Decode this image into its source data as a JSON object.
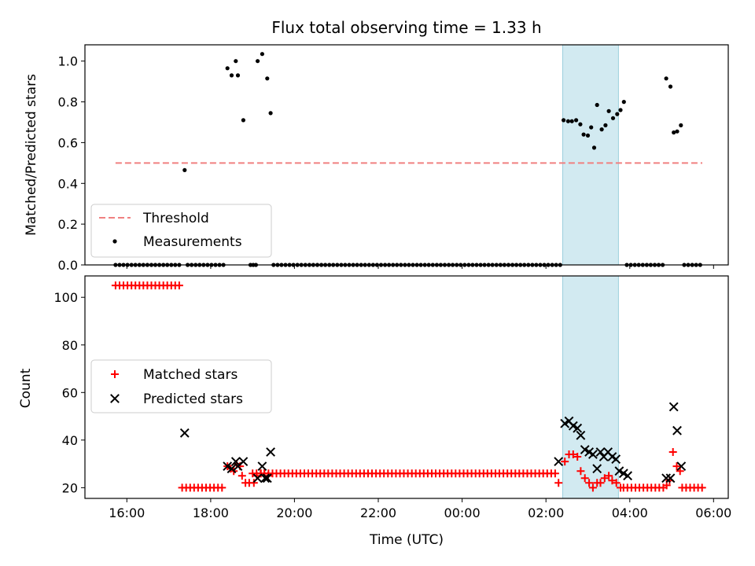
{
  "chart_data": [
    {
      "type": "scatter",
      "title": "Flux total observing time = 1.33 h",
      "ylabel": "Matched/Predicted stars",
      "xlabel": "",
      "x_unit": "hours since 00:00 UTC (negative = previous day)",
      "xlim": [
        -9.0,
        6.35
      ],
      "ylim": [
        0,
        1.08
      ],
      "yticks": [
        0.0,
        0.2,
        0.4,
        0.6,
        0.8,
        1.0
      ],
      "ytick_labels": [
        "0.0",
        "0.2",
        "0.4",
        "0.6",
        "0.8",
        "1.0"
      ],
      "highlight_span": [
        2.4,
        3.73
      ],
      "highlight_color": "#add8e6",
      "threshold": {
        "name": "Threshold",
        "value": 0.5,
        "x_range": [
          -8.27,
          5.73
        ],
        "color": "#f08080"
      },
      "legend": {
        "placement": "lower-left",
        "entries": [
          "Threshold",
          "Measurements"
        ]
      },
      "series": [
        {
          "name": "Measurements",
          "color": "#000000",
          "marker": "dot",
          "points": [
            [
              -6.62,
              0.465
            ],
            [
              -5.6,
              0.965
            ],
            [
              -5.5,
              0.93
            ],
            [
              -5.4,
              1.0
            ],
            [
              -5.35,
              0.93
            ],
            [
              -5.22,
              0.71
            ],
            [
              -4.88,
              1.0
            ],
            [
              -4.77,
              1.035
            ],
            [
              -4.65,
              0.915
            ],
            [
              -4.57,
              0.745
            ],
            [
              2.42,
              0.71
            ],
            [
              2.53,
              0.705
            ],
            [
              2.62,
              0.705
            ],
            [
              2.72,
              0.71
            ],
            [
              2.82,
              0.69
            ],
            [
              2.9,
              0.64
            ],
            [
              3.0,
              0.635
            ],
            [
              3.08,
              0.675
            ],
            [
              3.15,
              0.575
            ],
            [
              3.22,
              0.785
            ],
            [
              3.33,
              0.665
            ],
            [
              3.42,
              0.685
            ],
            [
              3.5,
              0.755
            ],
            [
              3.6,
              0.72
            ],
            [
              3.7,
              0.74
            ],
            [
              3.78,
              0.76
            ],
            [
              3.86,
              0.8
            ],
            [
              4.87,
              0.915
            ],
            [
              4.97,
              0.875
            ],
            [
              5.05,
              0.65
            ],
            [
              5.13,
              0.655
            ],
            [
              5.22,
              0.685
            ]
          ]
        }
      ],
      "zero_measurements": {
        "value": 0.0,
        "segments": [
          {
            "from": -8.27,
            "to": -6.68,
            "step": 0.095
          },
          {
            "from": -6.55,
            "to": -5.68,
            "step": 0.095
          },
          {
            "from": -5.05,
            "to": -4.92,
            "step": 0.065
          },
          {
            "from": -4.5,
            "to": 2.35,
            "step": 0.095
          },
          {
            "from": 3.93,
            "to": 4.8,
            "step": 0.095
          },
          {
            "from": 5.3,
            "to": 5.73,
            "step": 0.095
          }
        ]
      }
    },
    {
      "type": "scatter",
      "title": "",
      "xlabel": "Time (UTC)",
      "ylabel": "Count",
      "x_unit": "hours since 00:00 UTC (negative = previous day)",
      "xlim": [
        -9.0,
        6.35
      ],
      "ylim": [
        15.5,
        109
      ],
      "yticks": [
        20,
        40,
        60,
        80,
        100
      ],
      "ytick_labels": [
        "20",
        "40",
        "60",
        "80",
        "100"
      ],
      "xticks": [
        -8,
        -6,
        -4,
        -2,
        0,
        2,
        4,
        6
      ],
      "xtick_labels": [
        "16:00",
        "18:00",
        "20:00",
        "22:00",
        "00:00",
        "02:00",
        "04:00",
        "06:00"
      ],
      "highlight_span": [
        2.4,
        3.73
      ],
      "highlight_color": "#add8e6",
      "legend": {
        "placement": "center-left",
        "entries": [
          "Matched stars",
          "Predicted stars"
        ]
      },
      "series": [
        {
          "name": "Matched stars",
          "color": "#ff0000",
          "marker": "plus",
          "runs": [
            {
              "from": -8.27,
              "to": -6.7,
              "step": 0.095,
              "value": 105
            },
            {
              "from": -6.68,
              "to": -5.7,
              "step": 0.095,
              "value": 20
            },
            {
              "from": -5.0,
              "to": 2.25,
              "step": 0.095,
              "value": 26
            },
            {
              "from": 3.85,
              "to": 4.8,
              "step": 0.095,
              "value": 20
            },
            {
              "from": 5.25,
              "to": 5.73,
              "step": 0.095,
              "value": 20
            }
          ],
          "points": [
            [
              -5.6,
              29
            ],
            [
              -5.52,
              28
            ],
            [
              -5.45,
              27
            ],
            [
              -5.38,
              30
            ],
            [
              -5.3,
              29
            ],
            [
              -5.25,
              25
            ],
            [
              -5.17,
              22
            ],
            [
              -5.08,
              22
            ],
            [
              -4.97,
              22
            ],
            [
              -4.9,
              25
            ],
            [
              -4.8,
              26
            ],
            [
              -4.72,
              26
            ],
            [
              -4.63,
              25
            ],
            [
              2.3,
              22
            ],
            [
              2.45,
              31
            ],
            [
              2.55,
              34
            ],
            [
              2.65,
              34
            ],
            [
              2.75,
              33
            ],
            [
              2.83,
              27
            ],
            [
              2.93,
              24
            ],
            [
              3.03,
              22
            ],
            [
              3.12,
              20
            ],
            [
              3.22,
              22
            ],
            [
              3.3,
              22
            ],
            [
              3.4,
              24
            ],
            [
              3.5,
              25
            ],
            [
              3.58,
              23
            ],
            [
              3.68,
              22
            ],
            [
              3.78,
              20
            ],
            [
              4.88,
              21
            ],
            [
              4.95,
              23
            ],
            [
              5.03,
              35
            ],
            [
              5.12,
              29
            ],
            [
              5.2,
              27
            ]
          ]
        },
        {
          "name": "Predicted stars",
          "color": "#000000",
          "marker": "x",
          "points": [
            [
              -6.62,
              43
            ],
            [
              -5.6,
              29
            ],
            [
              -5.5,
              28
            ],
            [
              -5.4,
              31
            ],
            [
              -5.35,
              29
            ],
            [
              -5.22,
              31
            ],
            [
              -4.88,
              24
            ],
            [
              -4.77,
              29
            ],
            [
              -4.7,
              24
            ],
            [
              -4.65,
              24
            ],
            [
              -4.57,
              35
            ],
            [
              2.3,
              31
            ],
            [
              2.45,
              47
            ],
            [
              2.55,
              48
            ],
            [
              2.65,
              46
            ],
            [
              2.75,
              45
            ],
            [
              2.83,
              42
            ],
            [
              2.93,
              36
            ],
            [
              3.03,
              35
            ],
            [
              3.12,
              34
            ],
            [
              3.22,
              28
            ],
            [
              3.3,
              35
            ],
            [
              3.38,
              33
            ],
            [
              3.48,
              35
            ],
            [
              3.58,
              33
            ],
            [
              3.67,
              32
            ],
            [
              3.75,
              27
            ],
            [
              3.85,
              26
            ],
            [
              3.95,
              25
            ],
            [
              4.87,
              24
            ],
            [
              4.97,
              24
            ],
            [
              5.05,
              54
            ],
            [
              5.13,
              44
            ],
            [
              5.23,
              29
            ]
          ]
        }
      ]
    }
  ]
}
